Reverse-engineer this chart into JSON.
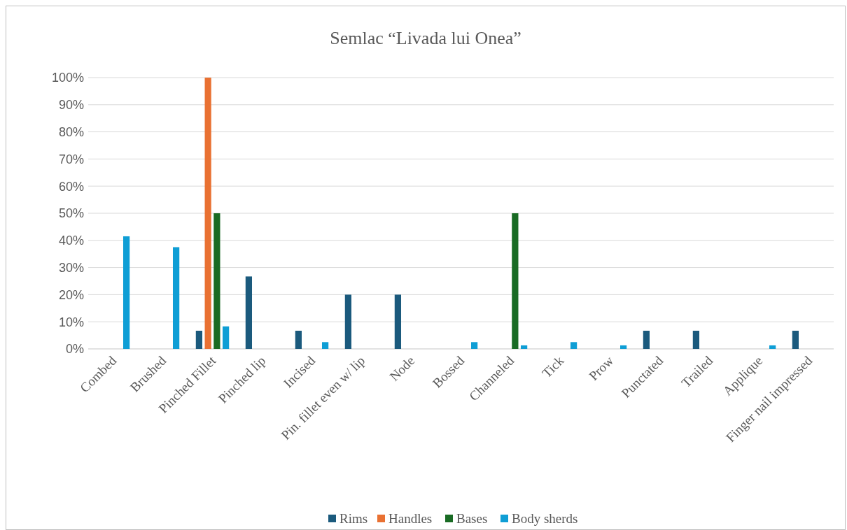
{
  "chart_data": {
    "type": "bar",
    "title": "Semlac “Livada lui Onea”",
    "categories": [
      "Combed",
      "Brushed",
      "Pinched Fillet",
      "Pinched lip",
      "Incised",
      "Pin. fillet even w/ lip",
      "Node",
      "Bossed",
      "Channeled",
      "Tick",
      "Prow",
      "Punctated",
      "Trailed",
      "Applique",
      "Finger nail impressed"
    ],
    "series": [
      {
        "name": "Rims",
        "color": "#1b5a7d",
        "values": [
          null,
          null,
          6.7,
          26.7,
          6.7,
          20,
          20,
          null,
          null,
          null,
          null,
          6.7,
          6.7,
          null,
          6.7
        ]
      },
      {
        "name": "Handles",
        "color": "#e97132",
        "values": [
          null,
          null,
          100,
          null,
          null,
          null,
          null,
          null,
          null,
          null,
          null,
          null,
          null,
          null,
          null
        ]
      },
      {
        "name": "Bases",
        "color": "#196b24",
        "values": [
          null,
          null,
          50,
          null,
          null,
          null,
          null,
          null,
          50,
          null,
          null,
          null,
          null,
          null,
          null
        ]
      },
      {
        "name": "Body sherds",
        "color": "#0f9ed5",
        "values": [
          41.5,
          37.5,
          8.3,
          null,
          2.5,
          null,
          null,
          2.5,
          1.3,
          2.5,
          1.3,
          null,
          null,
          1.3,
          null
        ]
      }
    ],
    "ylim": [
      0,
      100
    ],
    "yticks": [
      {
        "value": 0,
        "label": "0%"
      },
      {
        "value": 10,
        "label": "10%"
      },
      {
        "value": 20,
        "label": "20%"
      },
      {
        "value": 30,
        "label": "30%"
      },
      {
        "value": 40,
        "label": "40%"
      },
      {
        "value": 50,
        "label": "50%"
      },
      {
        "value": 60,
        "label": "60%"
      },
      {
        "value": 70,
        "label": "70%"
      },
      {
        "value": 80,
        "label": "80%"
      },
      {
        "value": 90,
        "label": "90%"
      },
      {
        "value": 100,
        "label": "100%"
      }
    ],
    "grid": "y",
    "legend": "bottom"
  }
}
